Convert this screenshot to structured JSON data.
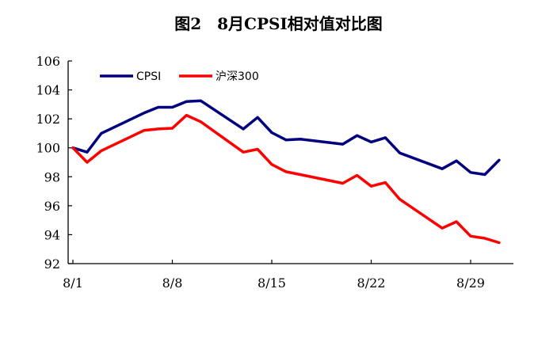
{
  "chart_data": {
    "type": "line",
    "title": "图2　8月CPSI相对值对比图",
    "xlabel": "",
    "ylabel": "",
    "ylim": [
      92,
      106
    ],
    "yticks": [
      92,
      94,
      96,
      98,
      100,
      102,
      104,
      106
    ],
    "xlim": [
      "8/1",
      "8/31"
    ],
    "xticks": [
      "8/1",
      "8/8",
      "8/15",
      "8/22",
      "8/29"
    ],
    "grid": false,
    "legend_position": "top-left",
    "series": [
      {
        "name": "CPSI",
        "color": "#00007f",
        "points": [
          [
            "8/1",
            100.0
          ],
          [
            "8/2",
            99.7
          ],
          [
            "8/3",
            101.0
          ],
          [
            "8/6",
            102.4
          ],
          [
            "8/7",
            102.8
          ],
          [
            "8/8",
            102.8
          ],
          [
            "8/9",
            103.2
          ],
          [
            "8/10",
            103.25
          ],
          [
            "8/13",
            101.3
          ],
          [
            "8/14",
            102.1
          ],
          [
            "8/15",
            101.05
          ],
          [
            "8/16",
            100.55
          ],
          [
            "8/17",
            100.6
          ],
          [
            "8/20",
            100.25
          ],
          [
            "8/21",
            100.85
          ],
          [
            "8/22",
            100.4
          ],
          [
            "8/23",
            100.7
          ],
          [
            "8/24",
            99.65
          ],
          [
            "8/27",
            98.55
          ],
          [
            "8/28",
            99.1
          ],
          [
            "8/29",
            98.3
          ],
          [
            "8/30",
            98.15
          ],
          [
            "8/31",
            99.15
          ]
        ]
      },
      {
        "name": "沪深300",
        "color": "#ff0000",
        "points": [
          [
            "8/1",
            100.0
          ],
          [
            "8/2",
            99.0
          ],
          [
            "8/3",
            99.8
          ],
          [
            "8/6",
            101.2
          ],
          [
            "8/7",
            101.3
          ],
          [
            "8/8",
            101.35
          ],
          [
            "8/9",
            102.25
          ],
          [
            "8/10",
            101.8
          ],
          [
            "8/13",
            99.7
          ],
          [
            "8/14",
            99.9
          ],
          [
            "8/15",
            98.85
          ],
          [
            "8/16",
            98.35
          ],
          [
            "8/17",
            98.15
          ],
          [
            "8/20",
            97.55
          ],
          [
            "8/21",
            98.1
          ],
          [
            "8/22",
            97.35
          ],
          [
            "8/23",
            97.6
          ],
          [
            "8/24",
            96.45
          ],
          [
            "8/27",
            94.45
          ],
          [
            "8/28",
            94.9
          ],
          [
            "8/29",
            93.9
          ],
          [
            "8/30",
            93.75
          ],
          [
            "8/31",
            93.45
          ]
        ]
      }
    ]
  }
}
